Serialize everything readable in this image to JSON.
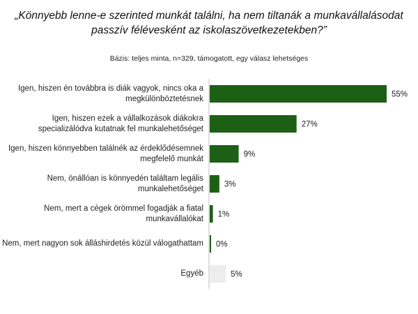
{
  "header": {
    "title": "„Könnyebb lenne-e szerinted munkát találni, ha nem tiltanák a munkavállalásodat passzív félévesként az iskolaszövetkezetekben?”",
    "subtitle": "Bázis: teljes minta, n=329, támogatott, egy válasz lehetséges"
  },
  "chart_data": {
    "type": "bar",
    "orientation": "horizontal",
    "title": "„Könnyebb lenne-e szerinted munkát találni, ha nem tiltanák a munkavállalásodat passzív félévesként az iskolaszövetkezetekben?”",
    "subtitle": "Bázis: teljes minta, n=329, támogatott, egy válasz lehetséges",
    "categories": [
      "Igen, hiszen én továbbra is diák vagyok, nincs oka a megkülönböztetésnek",
      "Igen, hiszen ezek a vállalkozások diákokra specializálódva kutatnak fel munkalehetőséget",
      "Igen, hiszen könnyebben találnék az érdeklődésemnek megfelelő munkát",
      "Nem, önállóan is könnyedén találtam legális munkalehetőséget",
      "Nem, mert a cégek örömmel fogadják a fiatal munkavállalókat",
      "Nem, mert nagyon sok álláshirdetés közül válogathattam",
      "Egyéb"
    ],
    "values": [
      55,
      27,
      9,
      3,
      1,
      0,
      5
    ],
    "value_labels": [
      "55%",
      "27%",
      "9%",
      "3%",
      "1%",
      "0%",
      "5%"
    ],
    "bar_colors": [
      "#1e5f16",
      "#1e5f16",
      "#1e5f16",
      "#1e5f16",
      "#1e5f16",
      "#1e5f16",
      "#ededed"
    ],
    "xlim": [
      0,
      55
    ],
    "grid": false,
    "legend": "none"
  }
}
